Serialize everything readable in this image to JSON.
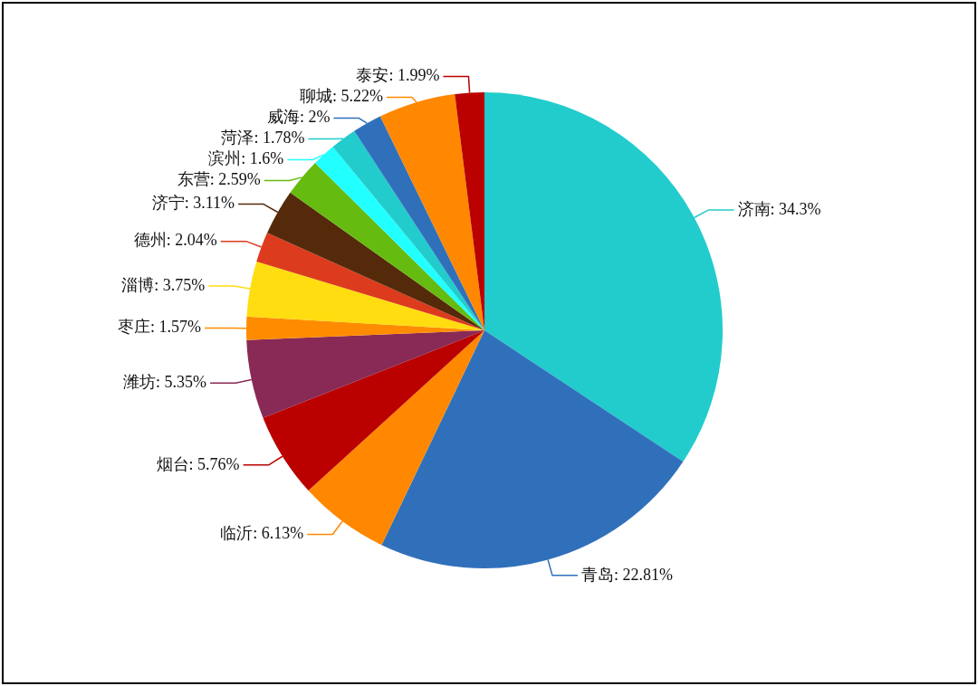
{
  "chart_data": {
    "type": "pie",
    "categories": [
      "济南",
      "青岛",
      "临沂",
      "烟台",
      "潍坊",
      "枣庄",
      "淄博",
      "德州",
      "济宁",
      "东营",
      "滨州",
      "菏泽",
      "威海",
      "聊城",
      "泰安"
    ],
    "values": [
      34.3,
      22.81,
      6.13,
      5.76,
      5.35,
      1.57,
      3.75,
      2.04,
      3.11,
      2.59,
      1.6,
      1.78,
      2,
      5.22,
      1.99
    ],
    "value_labels": [
      "34.3%",
      "22.81%",
      "6.13%",
      "5.76%",
      "5.35%",
      "1.57%",
      "3.75%",
      "2.04%",
      "3.11%",
      "2.59%",
      "1.6%",
      "1.78%",
      "2%",
      "5.22%",
      "1.99%"
    ],
    "colors": [
      "#22cccc",
      "#3070bb",
      "#ff8800",
      "#bb0000",
      "#882a55",
      "#ff8c00",
      "#ffdd11",
      "#dd3b1e",
      "#552a0a",
      "#66bb11",
      "#22ffff",
      "#22cccc",
      "#3070bb",
      "#ff8800",
      "#bb0000"
    ],
    "legend": false
  }
}
